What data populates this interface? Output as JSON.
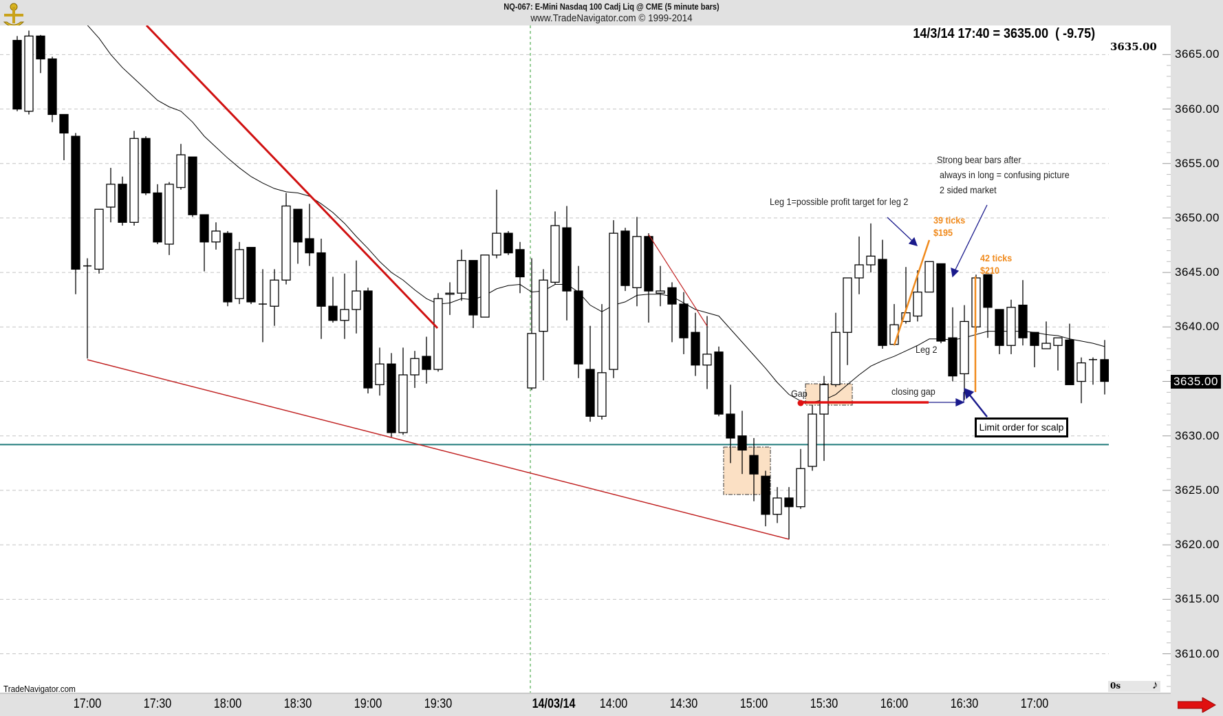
{
  "header": {
    "title": "NQ-067:  E-Mini Nasdaq 100 Cadj Liq @ CME  (5 minute bars)",
    "copyright": "www.TradeNavigator.com © 1999-2014",
    "readout": "14/3/14 17:40 = 3635.00  ( -9.75)",
    "last_price": "3635.00"
  },
  "footer": {
    "brand": "TradeNavigator.com",
    "timer": "0s",
    "note_icon": "music-note-icon",
    "scroll_icon": "red-right-arrow-icon"
  },
  "annotations": {
    "bear_note": [
      "Strong bear bars after",
      "always in long = confusing picture",
      "2 sided market"
    ],
    "leg1_note": "Leg 1=possible profit target for leg 2",
    "ticks1": "39 ticks",
    "dollars1": "$195",
    "ticks2": "42 ticks",
    "dollars2": "$210",
    "leg2": "Leg 2",
    "gap": "Gap",
    "closing_gap": "closing gap",
    "limit_order": "Limit order for scalp"
  },
  "colors": {
    "bull_body": "#ffffff",
    "bear_body": "#000000",
    "trendline": "#d01010",
    "measure": "#f08a1c",
    "arrow": "#1a1a8c",
    "support": "#1f7a7a",
    "highlight_box": "#fbe0c4",
    "ma": "#000000",
    "session_line": "#2a9a2a"
  },
  "chart_data": {
    "type": "candlestick",
    "title": "NQ-067:  E-Mini Nasdaq 100 Cadj Liq @ CME  (5 minute bars)",
    "ylim": [
      3606.4,
      3667.7
    ],
    "grid": true,
    "y_ticks": [
      "3665.00",
      "3660.00",
      "3655.00",
      "3650.00",
      "3645.00",
      "3640.00",
      "3635.00",
      "3630.00",
      "3625.00",
      "3620.00",
      "3615.00",
      "3610.00"
    ],
    "highlighted_tick": "3635.00",
    "x_ticks": [
      {
        "bar": 6,
        "label": "17:00"
      },
      {
        "bar": 12,
        "label": "17:30"
      },
      {
        "bar": 18,
        "label": "18:00"
      },
      {
        "bar": 24,
        "label": "18:30"
      },
      {
        "bar": 30,
        "label": "19:00"
      },
      {
        "bar": 36,
        "label": "19:30"
      },
      {
        "bar": 45.9,
        "label": "14/03/14",
        "bold": true
      },
      {
        "bar": 51,
        "label": "14:00"
      },
      {
        "bar": 57,
        "label": "14:30"
      },
      {
        "bar": 63,
        "label": "15:00"
      },
      {
        "bar": 69,
        "label": "15:30"
      },
      {
        "bar": 75,
        "label": "16:00"
      },
      {
        "bar": 81,
        "label": "16:30"
      },
      {
        "bar": 87,
        "label": "17:00"
      }
    ],
    "session_break_bar": 44,
    "support_level": 3629.2,
    "ohlc": [
      [
        3666.3,
        3666.7,
        3659.8,
        3660.0
      ],
      [
        3659.8,
        3667.2,
        3659.5,
        3666.7
      ],
      [
        3666.7,
        3666.8,
        3663.3,
        3664.6
      ],
      [
        3664.6,
        3664.8,
        3658.8,
        3659.5
      ],
      [
        3659.5,
        3659.5,
        3655.3,
        3657.8
      ],
      [
        3657.5,
        3657.8,
        3643.0,
        3645.3
      ],
      [
        3645.6,
        3646.3,
        3637.1,
        3645.6
      ],
      [
        3645.3,
        3650.8,
        3644.9,
        3650.8
      ],
      [
        3651.0,
        3654.6,
        3649.6,
        3653.1
      ],
      [
        3653.1,
        3653.8,
        3649.3,
        3649.6
      ],
      [
        3649.6,
        3658.0,
        3649.3,
        3657.3
      ],
      [
        3657.3,
        3657.5,
        3652.1,
        3652.3
      ],
      [
        3652.3,
        3653.1,
        3647.6,
        3647.8
      ],
      [
        3647.6,
        3653.3,
        3646.6,
        3653.1
      ],
      [
        3652.8,
        3656.8,
        3652.6,
        3655.8
      ],
      [
        3655.6,
        3655.6,
        3650.1,
        3650.3
      ],
      [
        3650.3,
        3650.3,
        3645.1,
        3647.8
      ],
      [
        3647.8,
        3649.6,
        3647.1,
        3648.8
      ],
      [
        3648.6,
        3648.8,
        3641.9,
        3642.3
      ],
      [
        3642.6,
        3647.8,
        3642.1,
        3647.1
      ],
      [
        3647.3,
        3647.3,
        3642.1,
        3642.3
      ],
      [
        3642.1,
        3645.3,
        3638.6,
        3642.1
      ],
      [
        3641.9,
        3645.3,
        3640.1,
        3644.3
      ],
      [
        3644.3,
        3652.3,
        3643.9,
        3651.1
      ],
      [
        3650.8,
        3650.8,
        3645.8,
        3647.8
      ],
      [
        3648.1,
        3651.3,
        3645.6,
        3646.8
      ],
      [
        3646.8,
        3648.1,
        3638.9,
        3641.9
      ],
      [
        3641.9,
        3644.6,
        3640.4,
        3640.6
      ],
      [
        3640.6,
        3644.9,
        3638.9,
        3641.6
      ],
      [
        3641.6,
        3646.1,
        3639.4,
        3643.3
      ],
      [
        3643.3,
        3643.6,
        3633.9,
        3634.4
      ],
      [
        3634.7,
        3638.1,
        3633.7,
        3636.6
      ],
      [
        3636.6,
        3637.6,
        3629.9,
        3630.3
      ],
      [
        3630.3,
        3638.1,
        3630.1,
        3635.6
      ],
      [
        3635.6,
        3637.8,
        3634.4,
        3637.1
      ],
      [
        3637.3,
        3639.1,
        3634.8,
        3636.1
      ],
      [
        3636.1,
        3643.1,
        3635.9,
        3642.6
      ],
      [
        3643.0,
        3644.1,
        3641.1,
        3643.1
      ],
      [
        3643.1,
        3647.1,
        3642.4,
        3646.1
      ],
      [
        3646.1,
        3646.1,
        3639.9,
        3641.1
      ],
      [
        3640.9,
        3646.6,
        3640.9,
        3646.6
      ],
      [
        3646.6,
        3652.6,
        3646.3,
        3648.6
      ],
      [
        3648.6,
        3648.8,
        3646.6,
        3646.8
      ],
      [
        3647.1,
        3647.8,
        3643.1,
        3644.6
      ],
      [
        3634.4,
        3646.3,
        3634.2,
        3639.4
      ],
      [
        3639.6,
        3645.3,
        3635.1,
        3644.3
      ],
      [
        3644.1,
        3650.6,
        3643.9,
        3649.3
      ],
      [
        3649.1,
        3651.1,
        3640.6,
        3643.3
      ],
      [
        3643.3,
        3645.6,
        3635.3,
        3636.6
      ],
      [
        3636.1,
        3640.1,
        3631.3,
        3631.8
      ],
      [
        3631.8,
        3642.1,
        3631.5,
        3635.8
      ],
      [
        3636.1,
        3649.8,
        3635.3,
        3648.6
      ],
      [
        3648.8,
        3649.1,
        3643.3,
        3643.8
      ],
      [
        3643.6,
        3650.1,
        3641.9,
        3648.3
      ],
      [
        3648.3,
        3648.6,
        3640.4,
        3643.3
      ],
      [
        3643.1,
        3645.6,
        3641.9,
        3643.3
      ],
      [
        3643.6,
        3644.1,
        3638.6,
        3642.1
      ],
      [
        3642.1,
        3643.2,
        3637.5,
        3639.0
      ],
      [
        3639.5,
        3641.3,
        3635.5,
        3636.5
      ],
      [
        3636.5,
        3641.0,
        3634.3,
        3637.5
      ],
      [
        3637.7,
        3638.2,
        3631.8,
        3632.0
      ],
      [
        3632.0,
        3634.7,
        3627.5,
        3629.8
      ],
      [
        3630.0,
        3632.3,
        3626.5,
        3628.7
      ],
      [
        3628.2,
        3629.8,
        3624.0,
        3626.5
      ],
      [
        3626.3,
        3626.8,
        3621.7,
        3622.8
      ],
      [
        3622.8,
        3625.3,
        3622.0,
        3624.3
      ],
      [
        3624.3,
        3625.3,
        3620.5,
        3623.5
      ],
      [
        3623.5,
        3628.8,
        3623.3,
        3627.0
      ],
      [
        3627.2,
        3632.8,
        3626.8,
        3632.0
      ],
      [
        3632.0,
        3635.5,
        3627.7,
        3634.7
      ],
      [
        3634.7,
        3641.3,
        3634.5,
        3639.5
      ],
      [
        3639.5,
        3644.5,
        3636.5,
        3644.5
      ],
      [
        3644.5,
        3648.3,
        3643.0,
        3645.7
      ],
      [
        3645.7,
        3649.5,
        3645.0,
        3646.5
      ],
      [
        3646.2,
        3648.0,
        3638.0,
        3638.3
      ],
      [
        3638.4,
        3642.1,
        3638.3,
        3640.2
      ],
      [
        3640.5,
        3645.5,
        3640.3,
        3641.3
      ],
      [
        3641.0,
        3645.2,
        3640.5,
        3643.2
      ],
      [
        3643.2,
        3646.0,
        3643.2,
        3646.0
      ],
      [
        3645.8,
        3645.8,
        3638.5,
        3638.7
      ],
      [
        3639.0,
        3641.8,
        3635.0,
        3635.5
      ],
      [
        3635.7,
        3642.0,
        3633.3,
        3640.5
      ],
      [
        3640.0,
        3644.8,
        3639.5,
        3644.5
      ],
      [
        3644.8,
        3644.8,
        3639.0,
        3641.8
      ],
      [
        3641.6,
        3641.6,
        3637.5,
        3638.3
      ],
      [
        3638.3,
        3642.5,
        3637.5,
        3641.8
      ],
      [
        3642.0,
        3644.3,
        3638.3,
        3639.0
      ],
      [
        3639.5,
        3639.5,
        3636.3,
        3638.3
      ],
      [
        3638.0,
        3640.5,
        3638.0,
        3638.5
      ],
      [
        3638.3,
        3639.0,
        3636.0,
        3639.0
      ],
      [
        3638.8,
        3640.3,
        3634.7,
        3634.7
      ],
      [
        3635.0,
        3637.2,
        3633.0,
        3636.7
      ],
      [
        3637.0,
        3637.2,
        3634.7,
        3637.0
      ],
      [
        3637.0,
        3638.8,
        3633.8,
        3635.0
      ]
    ],
    "ma": [
      null,
      null,
      null,
      null,
      null,
      null,
      3667.7,
      3666.5,
      3665.0,
      3663.8,
      3662.8,
      3661.8,
      3660.8,
      3660.2,
      3659.8,
      3658.8,
      3657.5,
      3656.5,
      3655.5,
      3654.6,
      3653.8,
      3653.2,
      3652.7,
      3652.4,
      3652.3,
      3652.0,
      3651.3,
      3650.5,
      3649.5,
      3648.3,
      3647.2,
      3646.0,
      3645.0,
      3644.3,
      3643.4,
      3642.6,
      3642.1,
      3642.2,
      3642.6,
      3642.5,
      3642.9,
      3643.5,
      3643.8,
      3643.9,
      3643.2,
      3643.3,
      3643.9,
      3643.9,
      3643.2,
      3642.0,
      3641.4,
      3642.0,
      3642.3,
      3642.9,
      3643.0,
      3643.0,
      3642.8,
      3642.2,
      3641.6,
      3641.3,
      3641.0,
      3639.8,
      3638.6,
      3637.4,
      3636.2,
      3634.9,
      3633.8,
      3633.2,
      3633.1,
      3633.3,
      3633.8,
      3634.7,
      3635.6,
      3636.4,
      3636.9,
      3637.3,
      3637.8,
      3638.3,
      3638.9,
      3638.9,
      3638.8,
      3639.0,
      3639.3,
      3639.6,
      3639.6,
      3639.6,
      3639.6,
      3639.5,
      3639.3,
      3639.2,
      3638.9,
      3638.7,
      3638.5,
      3638.2
    ]
  }
}
